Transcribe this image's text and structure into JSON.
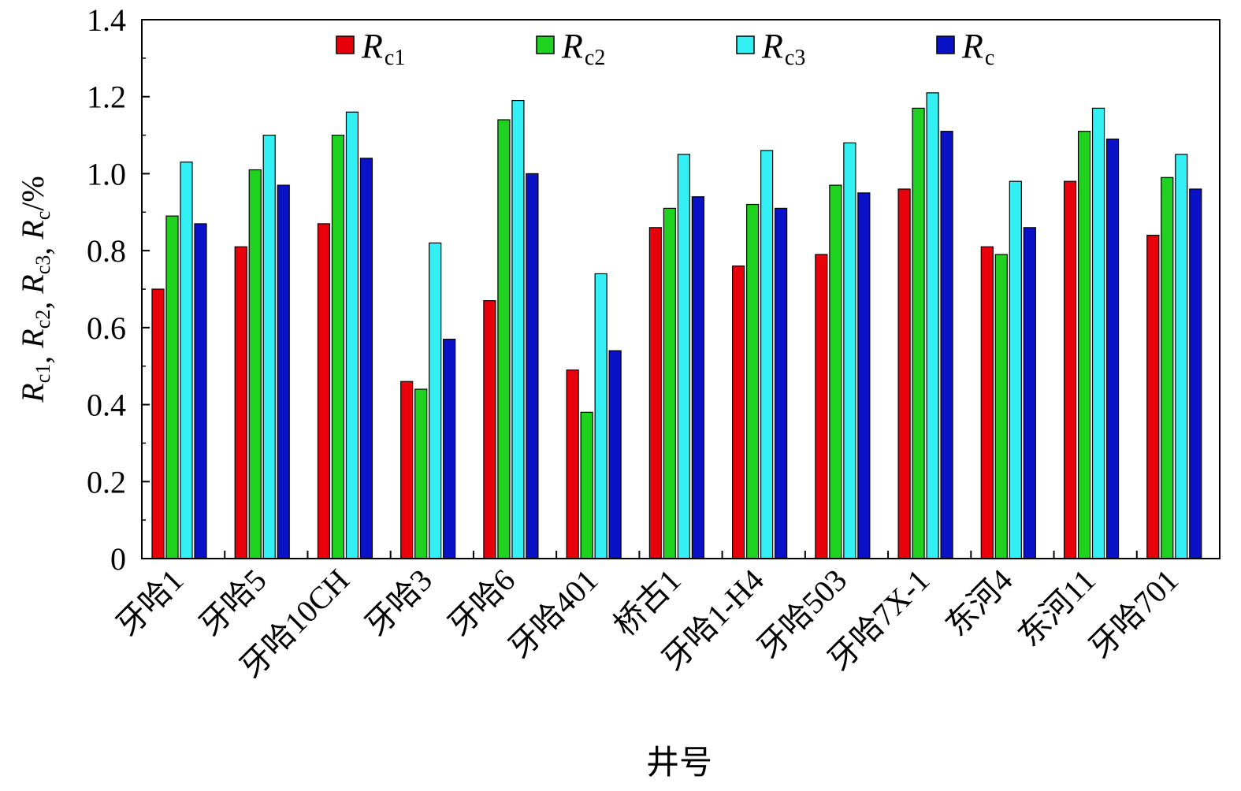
{
  "chart_data": {
    "type": "bar",
    "xlabel": "井号",
    "ylabel": {
      "parts": [
        {
          "base": "R",
          "sub": "c1"
        },
        {
          "base": "R",
          "sub": "c2"
        },
        {
          "base": "R",
          "sub": "c3"
        },
        {
          "base": "R",
          "sub": "c"
        }
      ],
      "separator": ", ",
      "unit": "/%"
    },
    "ylim": [
      0,
      1.4
    ],
    "yticks": [
      "0",
      "0.2",
      "0.4",
      "0.6",
      "0.8",
      "1.0",
      "1.2",
      "1.4"
    ],
    "grid": false,
    "legend_position": "top",
    "categories": [
      "牙哈1",
      "牙哈5",
      "牙哈10CH",
      "牙哈3",
      "牙哈6",
      "牙哈401",
      "桥古1",
      "牙哈1-H4",
      "牙哈503",
      "牙哈7X-1",
      "东河4",
      "东河11",
      "牙哈701"
    ],
    "series": [
      {
        "name": "R",
        "sub": "c1",
        "color": "#e8000b",
        "values": [
          0.7,
          0.81,
          0.87,
          0.46,
          0.67,
          0.49,
          0.86,
          0.76,
          0.79,
          0.96,
          0.81,
          0.98,
          0.84
        ]
      },
      {
        "name": "R",
        "sub": "c2",
        "color": "#1fd21f",
        "values": [
          0.89,
          1.01,
          1.1,
          0.44,
          1.14,
          0.38,
          0.91,
          0.92,
          0.97,
          1.17,
          0.79,
          1.11,
          0.99
        ]
      },
      {
        "name": "R",
        "sub": "c3",
        "color": "#33f0f5",
        "values": [
          1.03,
          1.1,
          1.16,
          0.82,
          1.19,
          0.74,
          1.05,
          1.06,
          1.08,
          1.21,
          0.98,
          1.17,
          1.05
        ]
      },
      {
        "name": "R",
        "sub": "c",
        "color": "#0a12c8",
        "values": [
          0.87,
          0.97,
          1.04,
          0.57,
          1.0,
          0.54,
          0.94,
          0.91,
          0.95,
          1.11,
          0.86,
          1.09,
          0.96
        ]
      }
    ]
  }
}
